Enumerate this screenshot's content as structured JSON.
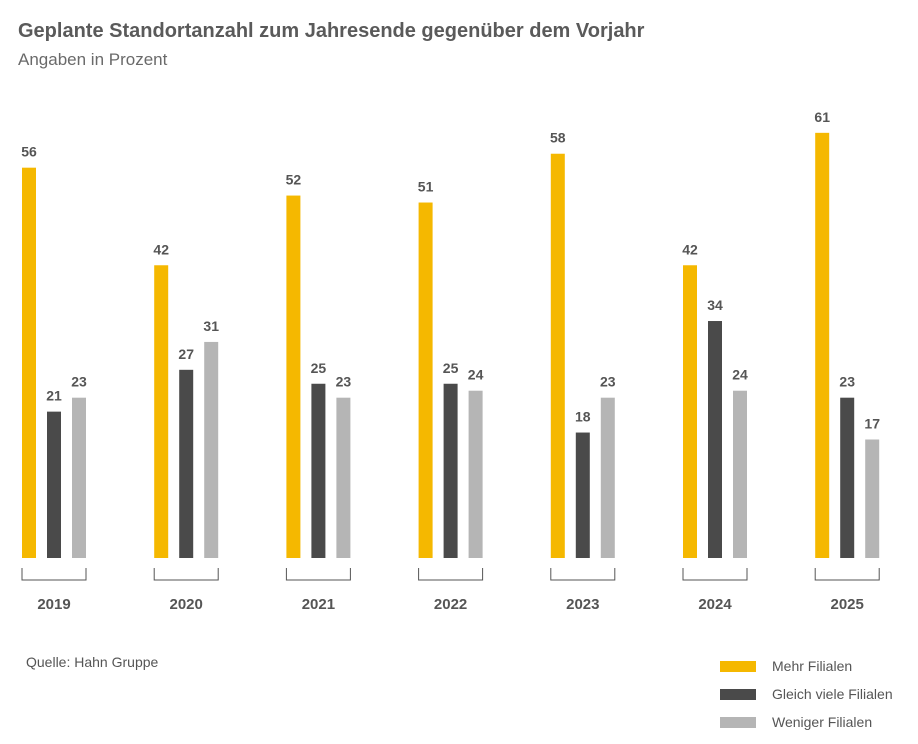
{
  "chart_data": {
    "type": "bar",
    "title": "Geplante Standortanzahl zum Jahresende gegenüber dem Vorjahr",
    "subtitle": "Angaben in Prozent",
    "categories": [
      "2019",
      "2020",
      "2021",
      "2022",
      "2023",
      "2024",
      "2025"
    ],
    "series": [
      {
        "name": "Mehr Filialen",
        "color": "#F5B800",
        "values": [
          56,
          42,
          52,
          51,
          58,
          42,
          61
        ]
      },
      {
        "name": "Gleich viele Filialen",
        "color": "#4A4A4A",
        "values": [
          21,
          27,
          25,
          25,
          18,
          34,
          23
        ]
      },
      {
        "name": "Weniger Filialen",
        "color": "#B5B5B5",
        "values": [
          23,
          31,
          23,
          24,
          23,
          24,
          17
        ]
      }
    ],
    "ylim": [
      0,
      61
    ],
    "grid": false,
    "legend_position": "bottom-right",
    "source": "Quelle: Hahn Gruppe"
  }
}
